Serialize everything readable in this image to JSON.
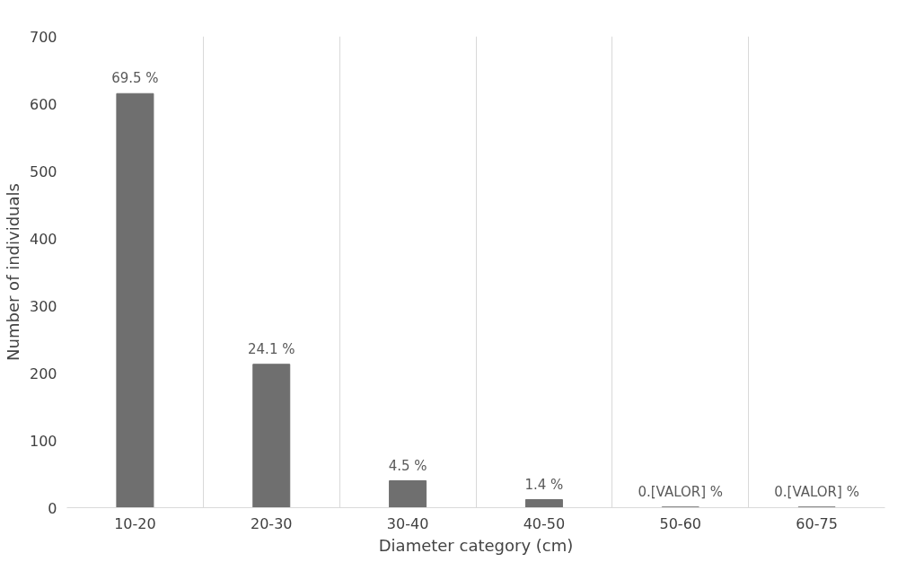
{
  "chart_data": {
    "type": "bar",
    "xlabel": "Diameter category (cm)",
    "ylabel": "Number of individuals",
    "categories": [
      "10-20",
      "20-30",
      "30-40",
      "40-50",
      "50-60",
      "60-75"
    ],
    "values": [
      615,
      213,
      40,
      12,
      1,
      1
    ],
    "annotations": [
      {
        "text": "69.5 %",
        "x": "10-20",
        "y": 615
      },
      {
        "text": "24.1 %",
        "x": "20-30",
        "y": 213
      },
      {
        "text": "4.5 %",
        "x": "30-40",
        "y": 40
      },
      {
        "text": "1.4 %",
        "x": "40-50",
        "y": 12
      },
      {
        "text": "0.[VALOR] %",
        "x": "50-60",
        "y": 1
      },
      {
        "text": "0.[VALOR] %",
        "x": "60-75",
        "y": 1
      }
    ],
    "color": "#6f6f6f",
    "ylim": [
      0,
      700
    ],
    "yticks": [
      0,
      100,
      200,
      300,
      400,
      500,
      600,
      700
    ],
    "grid": "x"
  }
}
